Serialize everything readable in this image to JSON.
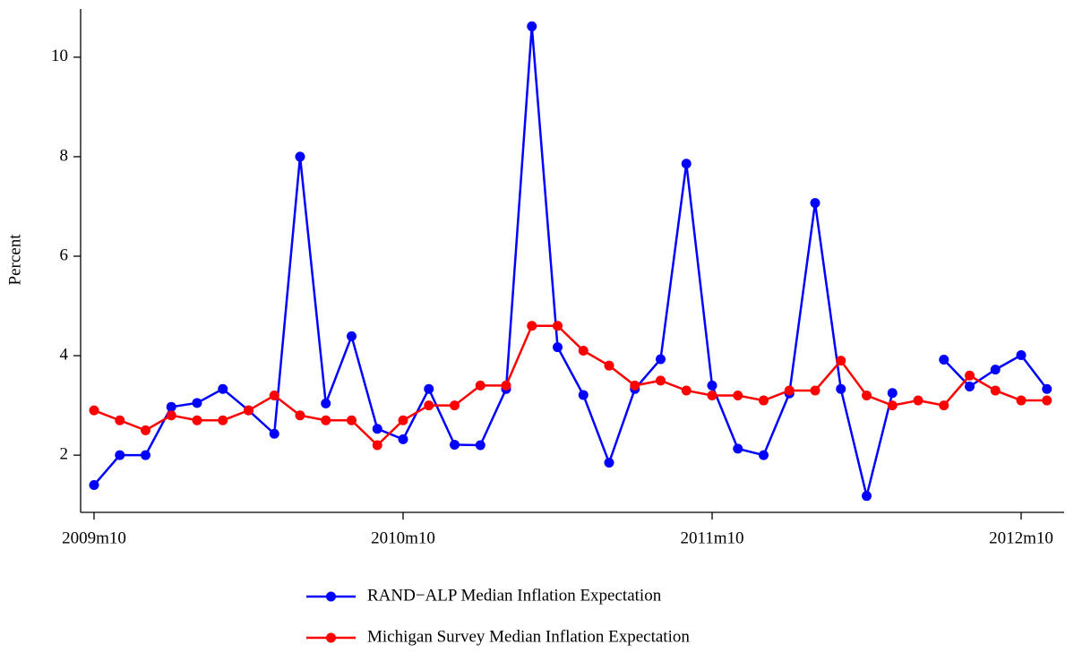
{
  "chart_data": {
    "type": "line",
    "y_label": "Percent",
    "categories": [
      "2009m10",
      null,
      null,
      null,
      null,
      null,
      null,
      null,
      null,
      null,
      null,
      null,
      "2010m10",
      null,
      null,
      null,
      null,
      null,
      null,
      null,
      null,
      null,
      null,
      null,
      "2011m10",
      null,
      null,
      null,
      null,
      null,
      null,
      null,
      null,
      null,
      null,
      null,
      "2012m10",
      null
    ],
    "series": [
      {
        "name": "RAND−ALP Median Inflation Expectation",
        "color": "#0000ff",
        "values": [
          1.4,
          2.0,
          2.0,
          2.97,
          3.05,
          3.33,
          2.9,
          2.43,
          8.0,
          3.04,
          4.39,
          2.53,
          2.32,
          3.33,
          2.21,
          2.2,
          3.33,
          10.62,
          4.17,
          3.21,
          1.85,
          3.33,
          3.93,
          7.86,
          3.4,
          2.13,
          2.0,
          3.24,
          7.07,
          3.33,
          1.18,
          3.25,
          null,
          3.92,
          3.38,
          3.72,
          4.01,
          3.33
        ]
      },
      {
        "name": "Michigan Survey Median Inflation Expectation",
        "color": "#ff0000",
        "values": [
          2.9,
          2.7,
          2.5,
          2.8,
          2.7,
          2.7,
          2.9,
          3.2,
          2.8,
          2.7,
          2.7,
          2.2,
          2.7,
          3.0,
          3.0,
          3.4,
          3.4,
          4.6,
          4.6,
          4.1,
          3.8,
          3.4,
          3.5,
          3.3,
          3.2,
          3.2,
          3.1,
          3.3,
          3.3,
          3.9,
          3.2,
          3.0,
          3.1,
          3.0,
          3.6,
          3.3,
          3.1,
          3.1
        ]
      }
    ],
    "ylim": [
      0.85,
      10.97
    ],
    "yticks": [
      2,
      4,
      6,
      8,
      10
    ],
    "grid": false,
    "legend": "bottom"
  }
}
